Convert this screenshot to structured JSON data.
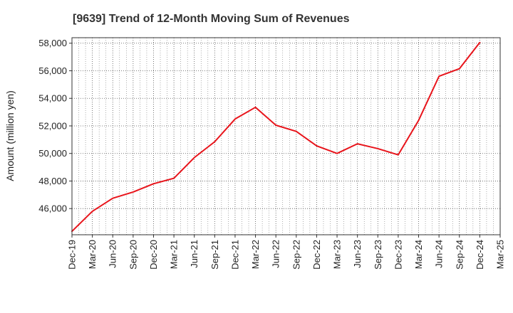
{
  "chart_data": {
    "type": "line",
    "title": "[9639]  Trend of 12-Month Moving Sum of Revenues",
    "xlabel": "",
    "ylabel": "Amount (million yen)",
    "ylim": [
      44100,
      58400
    ],
    "y_ticks": [
      46000,
      48000,
      50000,
      52000,
      54000,
      56000,
      58000
    ],
    "y_tick_labels": [
      "46,000",
      "48,000",
      "50,000",
      "52,000",
      "54,000",
      "56,000",
      "58,000"
    ],
    "x_tick_labels": [
      "Dec-19",
      "Mar-20",
      "Jun-20",
      "Sep-20",
      "Dec-20",
      "Mar-21",
      "Jun-21",
      "Sep-21",
      "Dec-21",
      "Mar-22",
      "Jun-22",
      "Sep-22",
      "Dec-22",
      "Mar-23",
      "Jun-23",
      "Sep-23",
      "Dec-23",
      "Mar-24",
      "Jun-24",
      "Sep-24",
      "Dec-24",
      "Mar-25"
    ],
    "grid": true,
    "series": [
      {
        "color": "#e8141b",
        "x": [
          "Dec-19",
          "Mar-20",
          "Jun-20",
          "Sep-20",
          "Dec-20",
          "Mar-21",
          "Jun-21",
          "Sep-21",
          "Dec-21",
          "Mar-22",
          "Jun-22",
          "Sep-22",
          "Dec-22",
          "Mar-23",
          "Jun-23",
          "Sep-23",
          "Dec-23",
          "Mar-24",
          "Jun-24",
          "Sep-24",
          "Dec-24"
        ],
        "values": [
          44350,
          45800,
          46750,
          47200,
          47800,
          48200,
          49700,
          50850,
          52500,
          53350,
          52050,
          51600,
          50550,
          50000,
          50700,
          50350,
          49900,
          52400,
          55600,
          56150,
          58050
        ]
      }
    ]
  }
}
